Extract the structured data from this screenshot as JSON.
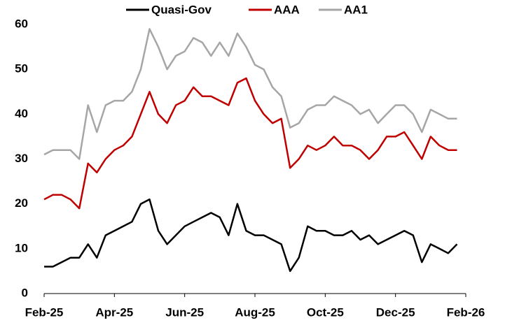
{
  "chart_data": {
    "type": "line",
    "categories": [
      "Feb-25",
      null,
      null,
      null,
      null,
      null,
      null,
      null,
      "Apr-25",
      null,
      null,
      null,
      null,
      null,
      null,
      null,
      "Jun-25",
      null,
      null,
      null,
      null,
      null,
      null,
      null,
      "Aug-25",
      null,
      null,
      null,
      null,
      null,
      null,
      null,
      "Oct-25",
      null,
      null,
      null,
      null,
      null,
      null,
      null,
      "Dec-25",
      null,
      null,
      null,
      null,
      null,
      null,
      null,
      "Feb-26"
    ],
    "series": [
      {
        "name": "Quasi-Gov",
        "color": "#000000",
        "values": [
          6,
          6,
          7,
          8,
          8,
          11,
          8,
          13,
          14,
          15,
          16,
          20,
          21,
          14,
          11,
          13,
          15,
          16,
          17,
          18,
          17,
          13,
          20,
          14,
          13,
          13,
          12,
          11,
          5,
          8,
          15,
          14,
          14,
          13,
          13,
          14,
          12,
          13,
          11,
          12,
          13,
          14,
          13,
          7,
          11,
          10,
          9,
          11,
          null
        ]
      },
      {
        "name": "AAA",
        "color": "#c00000",
        "values": [
          21,
          22,
          22,
          21,
          19,
          29,
          27,
          30,
          32,
          33,
          35,
          40,
          45,
          40,
          38,
          42,
          43,
          46,
          44,
          44,
          43,
          42,
          47,
          48,
          43,
          40,
          38,
          39,
          28,
          30,
          33,
          32,
          33,
          35,
          33,
          33,
          32,
          30,
          32,
          35,
          35,
          36,
          33,
          30,
          35,
          33,
          32,
          32,
          null
        ]
      },
      {
        "name": "AA1",
        "color": "#a6a6a6",
        "values": [
          31,
          32,
          32,
          32,
          30,
          42,
          36,
          42,
          43,
          43,
          45,
          50,
          59,
          55,
          50,
          53,
          54,
          57,
          56,
          53,
          56,
          53,
          58,
          55,
          51,
          50,
          46,
          44,
          37,
          38,
          41,
          42,
          42,
          44,
          43,
          42,
          40,
          41,
          38,
          40,
          42,
          42,
          40,
          36,
          41,
          40,
          39,
          39,
          null
        ]
      }
    ],
    "ylim": [
      0,
      60
    ],
    "yticks": [
      0,
      10,
      20,
      30,
      40,
      50,
      60
    ],
    "grid": false,
    "legend": "top"
  }
}
